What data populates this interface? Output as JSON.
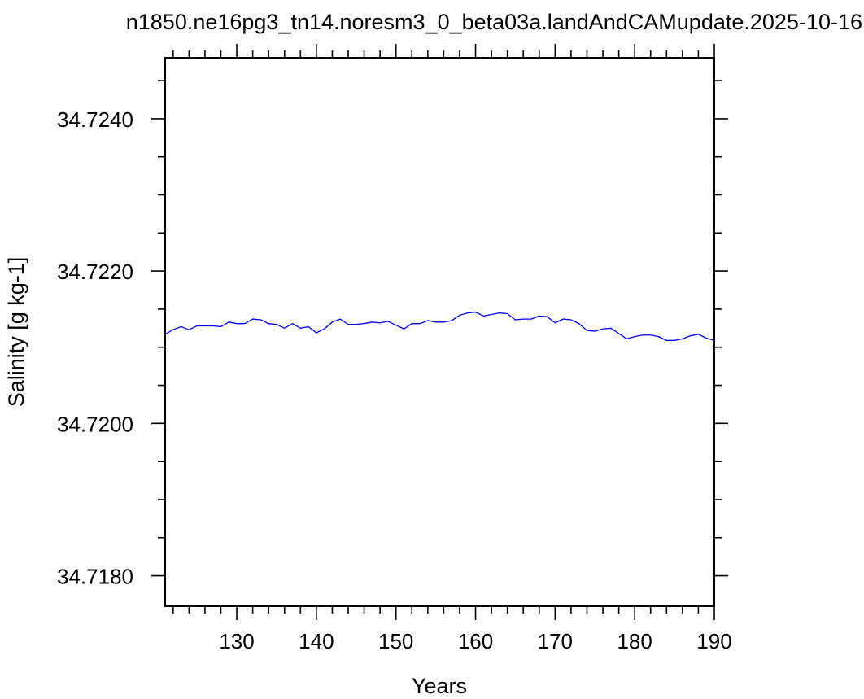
{
  "chart_data": {
    "type": "line",
    "title": "n1850.ne16pg3_tn14.noresm3_0_beta03a.landAndCAMupdate.2025-10-16",
    "xlabel": "Years",
    "ylabel": "Salinity [g kg-1]",
    "xlim": [
      121,
      190
    ],
    "ylim": [
      34.7176,
      34.7248
    ],
    "x_ticks": [
      130,
      140,
      150,
      160,
      170,
      180,
      190
    ],
    "x_tick_labels": [
      "130",
      "140",
      "150",
      "160",
      "170",
      "180",
      "190"
    ],
    "y_ticks": [
      34.718,
      34.72,
      34.722,
      34.724
    ],
    "y_tick_labels": [
      "34.7180",
      "34.7200",
      "34.7220",
      "34.7240"
    ],
    "grid": false,
    "line_color": "#0000ff",
    "series": [
      {
        "x": [
          121,
          122,
          123,
          124,
          125,
          126,
          127,
          128,
          129,
          130,
          131,
          132,
          133,
          134,
          135,
          136,
          137,
          138,
          139,
          140,
          141,
          142,
          143,
          144,
          145,
          146,
          147,
          148,
          149,
          150,
          151,
          152,
          153,
          154,
          155,
          156,
          157,
          158,
          159,
          160,
          161,
          162,
          163,
          164,
          165,
          166,
          167,
          168,
          169,
          170,
          171,
          172,
          173,
          174,
          175,
          176,
          177,
          178,
          179,
          180,
          181,
          182,
          183,
          184,
          185,
          186,
          187,
          188,
          189,
          190
        ],
        "values": [
          34.72117,
          34.72123,
          34.72127,
          34.72123,
          34.72128,
          34.72128,
          34.72128,
          34.72127,
          34.72133,
          34.72131,
          34.72131,
          34.72137,
          34.72136,
          34.72131,
          34.7213,
          34.72125,
          34.72131,
          34.72125,
          34.72127,
          34.72119,
          34.72124,
          34.72133,
          34.72137,
          34.7213,
          34.7213,
          34.72131,
          34.72133,
          34.72132,
          34.72134,
          34.72129,
          34.72124,
          34.72131,
          34.72131,
          34.72135,
          34.72133,
          34.72133,
          34.72135,
          34.72142,
          34.72145,
          34.72146,
          34.72141,
          34.72143,
          34.72145,
          34.72144,
          34.72136,
          34.72137,
          34.72137,
          34.72141,
          34.7214,
          34.72132,
          34.72137,
          34.72136,
          34.72131,
          34.72122,
          34.72121,
          34.72124,
          34.72125,
          34.72118,
          34.72111,
          34.72114,
          34.72116,
          34.72116,
          34.72114,
          34.72109,
          34.72109,
          34.72111,
          34.72115,
          34.72117,
          34.72112,
          34.72109
        ]
      }
    ]
  }
}
